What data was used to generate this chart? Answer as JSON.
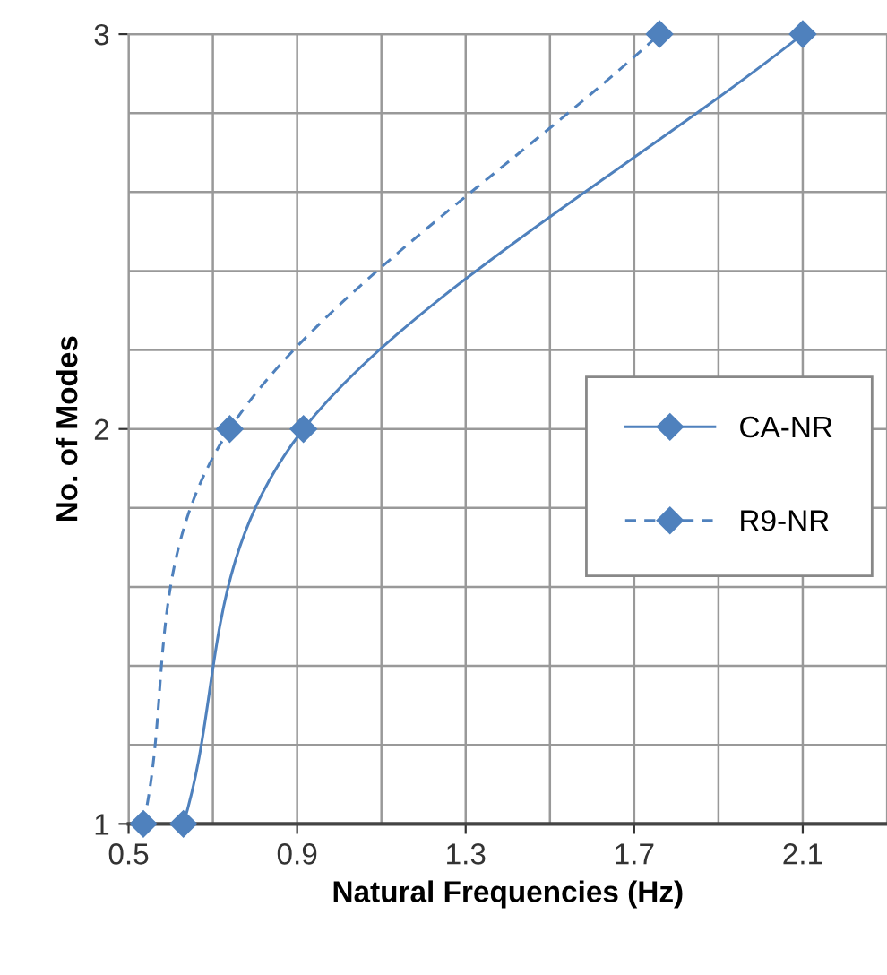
{
  "chart_data": {
    "type": "line",
    "xlabel": "Natural Frequencies (Hz)",
    "ylabel": "No. of Modes",
    "xlim": [
      0.5,
      2.3
    ],
    "ylim": [
      1,
      3
    ],
    "xticks": [
      0.5,
      {
        "value": 0.7,
        "label": null
      },
      0.9,
      {
        "value": 1.1,
        "label": null
      },
      1.3,
      {
        "value": 1.5,
        "label": null
      },
      1.7,
      {
        "value": 1.9,
        "label": null
      },
      2.1
    ],
    "yticks": [
      1,
      {
        "value": 1.2,
        "label": null
      },
      {
        "value": 1.4,
        "label": null
      },
      {
        "value": 1.6,
        "label": null
      },
      {
        "value": 1.8,
        "label": null
      },
      2,
      {
        "value": 2.2,
        "label": null
      },
      {
        "value": 2.4,
        "label": null
      },
      {
        "value": 2.6,
        "label": null
      },
      {
        "value": 2.8,
        "label": null
      },
      3
    ],
    "grid": true,
    "legend": "right",
    "marker": "diamond",
    "series": [
      {
        "name": "CA-NR",
        "color": "#4f81bd",
        "x": [
          0.63,
          0.915,
          2.1
        ],
        "values": [
          1,
          2,
          3
        ],
        "line_style": "solid"
      },
      {
        "name": "R9-NR",
        "color": "#4f81bd",
        "x": [
          0.535,
          0.74,
          1.76
        ],
        "values": [
          1,
          2,
          3
        ],
        "line_style": "dashed"
      }
    ]
  }
}
